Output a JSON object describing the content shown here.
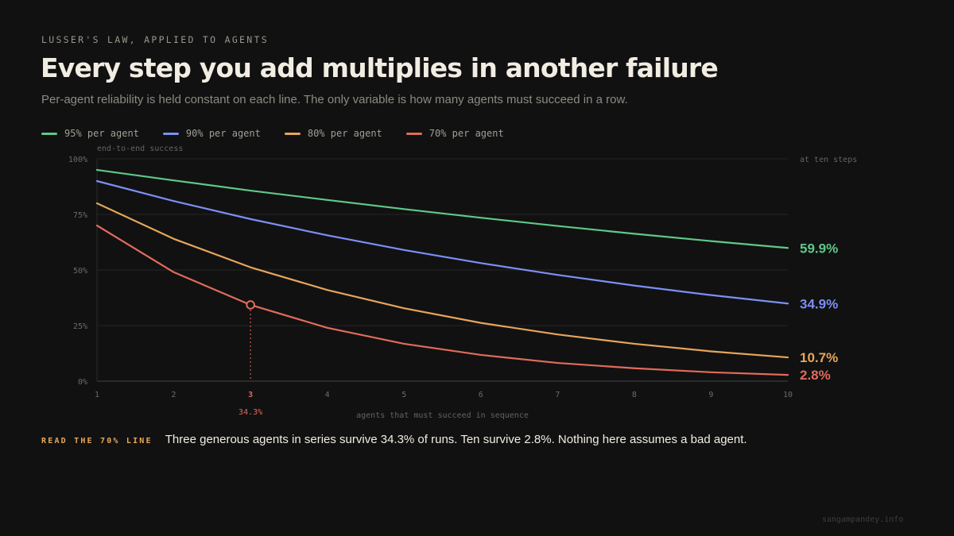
{
  "header": {
    "eyebrow": "LUSSER'S LAW, APPLIED TO AGENTS",
    "title": "Every step you add multiplies in another failure",
    "subtitle": "Per-agent reliability is held constant on each line. The only variable is how many agents must succeed in a row."
  },
  "legend": [
    {
      "label": "95% per agent",
      "color": "#5fc88a"
    },
    {
      "label": "90% per agent",
      "color": "#7b8ff5"
    },
    {
      "label": "80% per agent",
      "color": "#e6a55a"
    },
    {
      "label": "70% per agent",
      "color": "#e06b5c"
    }
  ],
  "chart_data": {
    "type": "line",
    "title": "Every step you add multiplies in another failure",
    "ylabel": "end-to-end success",
    "xlabel": "agents that must succeed in sequence",
    "x": [
      1,
      2,
      3,
      4,
      5,
      6,
      7,
      8,
      9,
      10
    ],
    "xlim": [
      1,
      10
    ],
    "ylim": [
      0,
      100
    ],
    "y_ticks": [
      0,
      25,
      50,
      75,
      100
    ],
    "y_tick_labels": [
      "0%",
      "25%",
      "50%",
      "75%",
      "100%"
    ],
    "grid": true,
    "legend_position": "top-left",
    "end_label_header": "at ten steps",
    "series": [
      {
        "name": "95% per agent",
        "color": "#5fc88a",
        "end_label": "59.9%",
        "values": [
          95,
          90.3,
          85.7,
          81.5,
          77.4,
          73.5,
          69.8,
          66.3,
          63.0,
          59.9
        ]
      },
      {
        "name": "90% per agent",
        "color": "#7b8ff5",
        "end_label": "34.9%",
        "values": [
          90,
          81,
          72.9,
          65.6,
          59.0,
          53.1,
          47.8,
          43.0,
          38.7,
          34.9
        ]
      },
      {
        "name": "80% per agent",
        "color": "#e6a55a",
        "end_label": "10.7%",
        "values": [
          80,
          64,
          51.2,
          41.0,
          32.8,
          26.2,
          21.0,
          16.8,
          13.4,
          10.7
        ]
      },
      {
        "name": "70% per agent",
        "color": "#e06b5c",
        "end_label": "2.8%",
        "values": [
          70,
          49,
          34.3,
          24.0,
          16.8,
          11.8,
          8.2,
          5.8,
          4.0,
          2.8
        ]
      }
    ],
    "highlight": {
      "series": 3,
      "x": 3,
      "value": 34.3,
      "label": "34.3%"
    }
  },
  "note": {
    "label": "READ THE 70% LINE",
    "text": "Three generous agents in series survive 34.3% of runs. Ten survive 2.8%. Nothing here assumes a bad agent."
  },
  "footer": "sangampandey.info"
}
